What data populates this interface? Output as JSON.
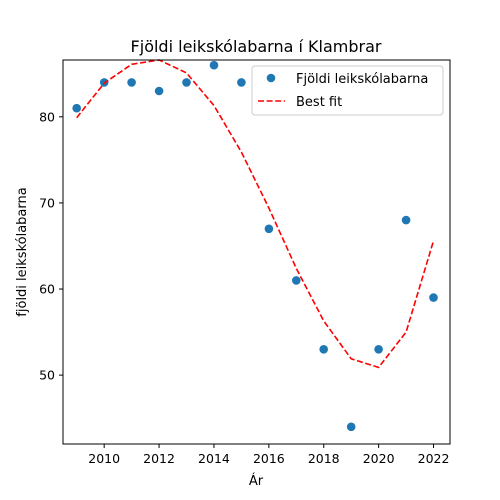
{
  "chart_data": {
    "type": "scatter",
    "title": "Fjöldi leikskólabarna í Klambrar",
    "xlabel": "Ár",
    "ylabel": "fjöldi leikskólabarna",
    "xlim": [
      2008.5,
      2022.6
    ],
    "ylim": [
      42,
      86.6
    ],
    "xticks": [
      2010,
      2012,
      2014,
      2016,
      2018,
      2020,
      2022
    ],
    "yticks": [
      50,
      60,
      70,
      80
    ],
    "grid": false,
    "legend_position": "top-right",
    "series": [
      {
        "name": "Fjöldi leikskólabarna",
        "kind": "scatter",
        "color": "#1f77b4",
        "x": [
          2009,
          2010,
          2011,
          2012,
          2013,
          2014,
          2015,
          2016,
          2017,
          2018,
          2019,
          2020,
          2021,
          2022
        ],
        "y": [
          81,
          84,
          84,
          83,
          84,
          86,
          84,
          67,
          61,
          53,
          44,
          53,
          68,
          59
        ]
      },
      {
        "name": "Best fit",
        "kind": "line",
        "style": "dashed",
        "color": "#ff0000",
        "x": [
          2009,
          2010,
          2011,
          2012,
          2013,
          2014,
          2015,
          2016,
          2017,
          2018,
          2019,
          2020,
          2021,
          2022
        ],
        "y": [
          79.9,
          83.9,
          86.1,
          86.6,
          85.1,
          81.3,
          75.9,
          69.4,
          62.4,
          56.3,
          51.9,
          50.9,
          55.0,
          65.6
        ]
      }
    ]
  }
}
